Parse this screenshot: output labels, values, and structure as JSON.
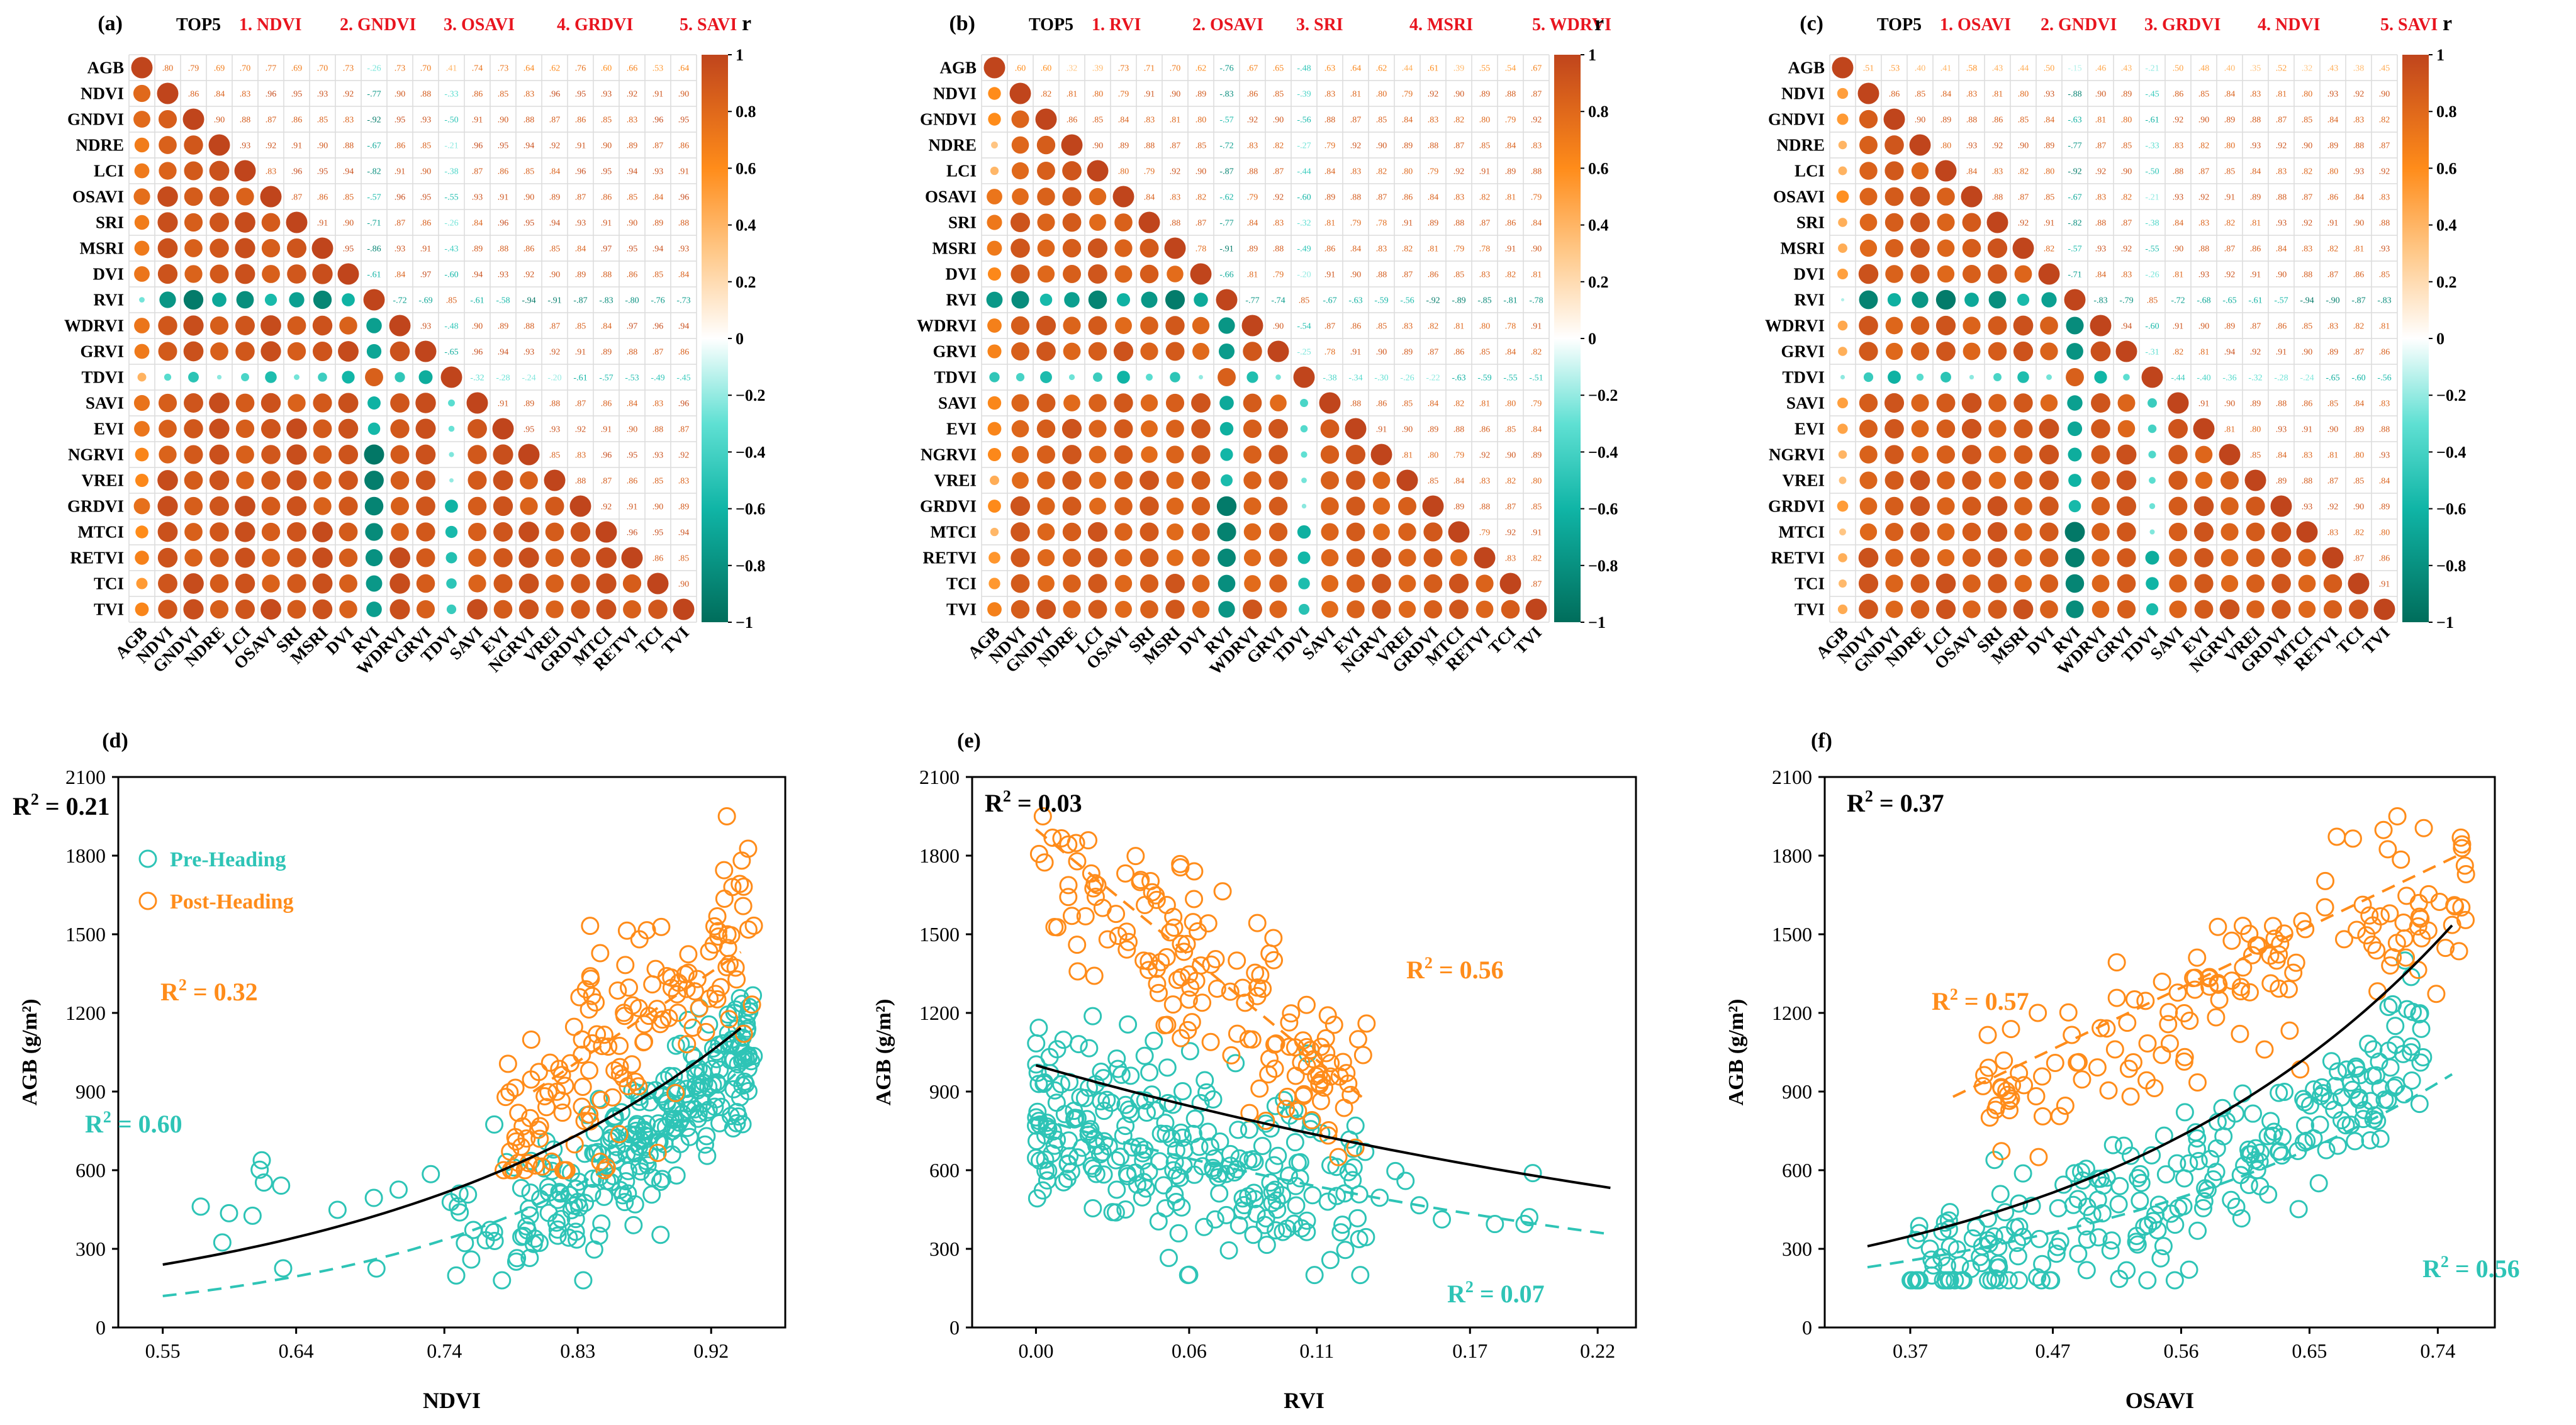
{
  "chart_data": {
    "colors": {
      "orange": "#ff8c1a",
      "teal": "#2ec4b6",
      "neg_dark": "#006d5b",
      "pos_dark": "#c0451c",
      "title_red": "#e8151f"
    },
    "colorbar": {
      "label": "r",
      "ticks": [
        "1",
        "0.8",
        "0.6",
        "0.4",
        "0.2",
        "0",
        "−0.2",
        "−0.4",
        "−0.6",
        "−0.8",
        "−1"
      ]
    },
    "variables": [
      "AGB",
      "NDVI",
      "GNDVI",
      "NDRE",
      "LCI",
      "OSAVI",
      "SRI",
      "MSRI",
      "DVI",
      "RVI",
      "WDRVI",
      "GRVI",
      "TDVI",
      "SAVI",
      "EVI",
      "NGRVI",
      "VREI",
      "GRDVI",
      "MTCI",
      "RETVI",
      "TCI",
      "TVI"
    ],
    "heatmaps": [
      {
        "label": "(a)",
        "type": "heatmap",
        "top5": [
          "TOP5",
          "1. NDVI",
          "2. GNDVI",
          "3. OSAVI",
          "4. GRDVI",
          "5. SAVI"
        ],
        "agb_row": [
          0.8,
          0.79,
          0.69,
          0.7,
          0.77,
          0.69,
          0.7,
          0.73,
          -0.26,
          0.73,
          0.7,
          0.41,
          0.74,
          0.73,
          0.64,
          0.62,
          0.76,
          0.6,
          0.66,
          0.53,
          0.64
        ],
        "base": 0.85
      },
      {
        "label": "(b)",
        "type": "heatmap",
        "top5": [
          "TOP5",
          "1. RVI",
          "2. OSAVI",
          "3. SRI",
          "4. MSRI",
          "5. WDRVI"
        ],
        "agb_row": [
          0.6,
          0.6,
          0.32,
          0.39,
          0.73,
          0.71,
          0.7,
          0.62,
          -0.76,
          0.67,
          0.65,
          -0.48,
          0.63,
          0.64,
          0.62,
          0.44,
          0.61,
          0.39,
          0.55,
          0.54,
          0.67
        ],
        "base": 0.8
      },
      {
        "label": "(c)",
        "type": "heatmap",
        "top5": [
          "TOP5",
          "1. OSAVI",
          "2. GNDVI",
          "3. GRDVI",
          "4. NDVI",
          "5. SAVI"
        ],
        "agb_row": [
          0.51,
          0.53,
          0.4,
          0.41,
          0.58,
          0.43,
          0.44,
          0.5,
          -0.15,
          0.46,
          0.43,
          -0.21,
          0.5,
          0.48,
          0.4,
          0.35,
          0.52,
          0.32,
          0.43,
          0.38,
          0.45
        ],
        "base": 0.82
      }
    ],
    "scatters": [
      {
        "label": "(d)",
        "type": "scatter",
        "xlabel": "NDVI",
        "ylabel": "AGB (g/m²)",
        "xticks": [
          "0.55",
          "0.64",
          "0.74",
          "0.83",
          "0.92"
        ],
        "xtick_vals": [
          0.55,
          0.64,
          0.74,
          0.83,
          0.92
        ],
        "xlim": [
          0.52,
          0.97
        ],
        "r2_all": "R² = 0.21",
        "r2_post": "R² = 0.32",
        "r2_pre": "R² = 0.60"
      },
      {
        "label": "(e)",
        "type": "scatter",
        "xlabel": "RVI",
        "ylabel": "AGB (g/m²)",
        "xticks": [
          "0.00",
          "0.06",
          "0.11",
          "0.17",
          "0.22"
        ],
        "xtick_vals": [
          0.0,
          0.06,
          0.11,
          0.17,
          0.22
        ],
        "xlim": [
          -0.025,
          0.235
        ],
        "r2_all": "R² = 0.03",
        "r2_post": "R² = 0.56",
        "r2_pre": "R² = 0.07"
      },
      {
        "label": "(f)",
        "type": "scatter",
        "xlabel": "OSAVI",
        "ylabel": "AGB (g/m²)",
        "xticks": [
          "0.37",
          "0.47",
          "0.56",
          "0.65",
          "0.74"
        ],
        "xtick_vals": [
          0.37,
          0.47,
          0.56,
          0.65,
          0.74
        ],
        "xlim": [
          0.31,
          0.78
        ],
        "r2_all": "R² = 0.37",
        "r2_post": "R² = 0.57",
        "r2_pre": "R² = 0.56"
      }
    ],
    "y_ticks": [
      "0",
      "300",
      "600",
      "900",
      "1200",
      "1500",
      "1800",
      "2100"
    ],
    "ylim": [
      0,
      2100
    ],
    "legend": [
      "Pre-Heading",
      "Post-Heading"
    ]
  }
}
